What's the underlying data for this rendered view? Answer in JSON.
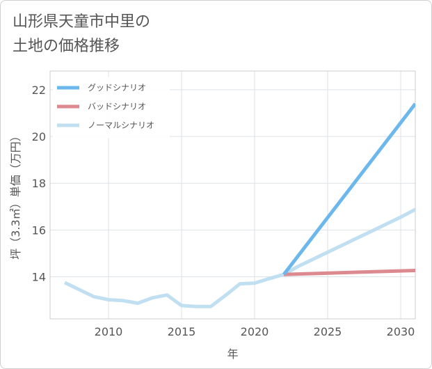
{
  "chart_data": {
    "type": "line",
    "title": "山形県天童市中里の\n土地の価格推移",
    "xlabel": "年",
    "ylabel": "坪（3.3㎡）単価（万円）",
    "xlim": [
      2006,
      2031
    ],
    "ylim": [
      12.2,
      22.8
    ],
    "x_ticks": [
      2010,
      2015,
      2020,
      2025,
      2030
    ],
    "y_ticks": [
      14,
      16,
      18,
      20,
      22
    ],
    "grid": true,
    "legend_position": "top-left",
    "series": [
      {
        "name": "グッドシナリオ",
        "color": "#6cb8ec",
        "x": [
          2022,
          2031
        ],
        "values": [
          14.1,
          21.4
        ]
      },
      {
        "name": "バッドシナリオ",
        "color": "#dc8a90",
        "x": [
          2022,
          2031
        ],
        "values": [
          14.1,
          14.27
        ]
      },
      {
        "name": "ノーマルシナリオ",
        "color": "#c0dff0",
        "x": [
          2007,
          2008,
          2009,
          2010,
          2011,
          2012,
          2013,
          2014,
          2015,
          2016,
          2017,
          2018,
          2019,
          2020,
          2021,
          2022,
          2023,
          2024,
          2025,
          2026,
          2027,
          2028,
          2029,
          2030,
          2031
        ],
        "values": [
          13.75,
          13.45,
          13.15,
          13.02,
          12.98,
          12.87,
          13.1,
          13.22,
          12.77,
          12.73,
          12.73,
          13.2,
          13.7,
          13.73,
          13.92,
          14.1,
          14.45,
          14.75,
          15.05,
          15.35,
          15.65,
          15.95,
          16.25,
          16.55,
          16.88
        ]
      }
    ]
  }
}
